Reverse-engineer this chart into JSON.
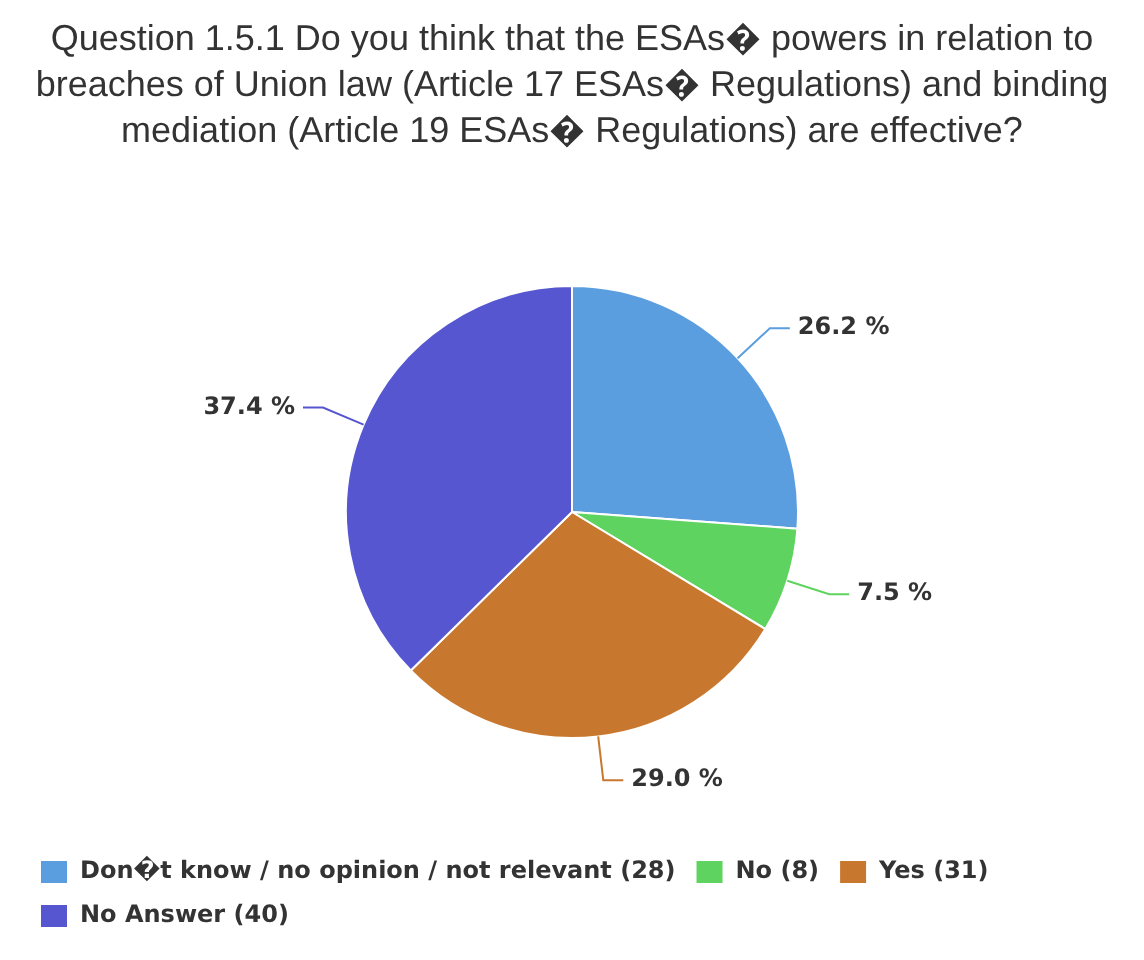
{
  "chart_data": {
    "type": "pie",
    "title": "Question 1.5.1 Do you think that the ESAs� powers in relation to breaches of Union law (Article 17 ESAs� Regulations) and binding mediation (Article 19 ESAs� Regulations) are effective?",
    "categories": [
      "Don�t know / no opinion / not relevant (28)",
      "No (8)",
      "Yes (31)",
      "No Answer (40)"
    ],
    "values": [
      26.2,
      7.5,
      29.0,
      37.4
    ],
    "colors": [
      "#5b9ee0",
      "#5fd35f",
      "#c8782e",
      "#5656d0"
    ],
    "value_labels": [
      "26.2 %",
      "7.5 %",
      "29.0 %",
      "37.4 %"
    ],
    "legend": "bottom"
  }
}
